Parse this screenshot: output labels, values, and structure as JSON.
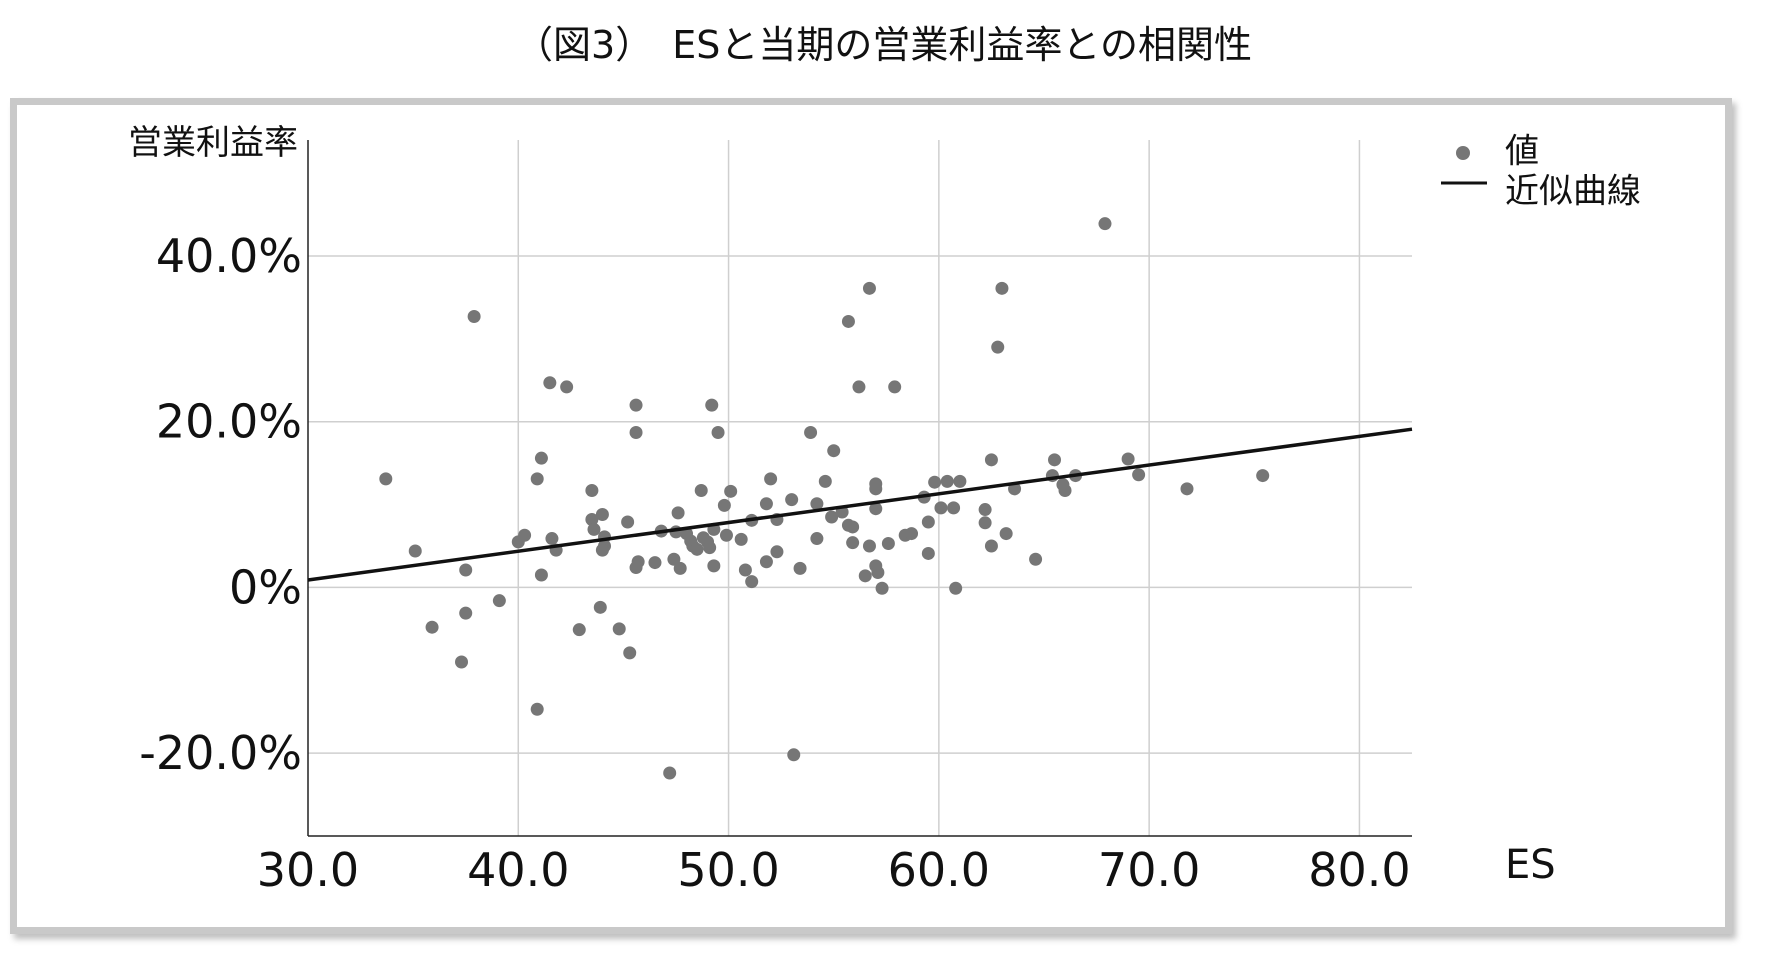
{
  "title": "（図3）　ESと当期の営業利益率との相関性",
  "chart_data": {
    "type": "scatter",
    "xlabel": "ES",
    "ylabel": "営業利益率",
    "xlim": [
      30,
      82.5
    ],
    "ylim": [
      -30,
      54
    ],
    "x_ticks": [
      30,
      40,
      50,
      60,
      70,
      80
    ],
    "x_tick_labels": [
      "30.0",
      "40.0",
      "50.0",
      "60.0",
      "70.0",
      "80.0"
    ],
    "y_ticks": [
      -20,
      0,
      20,
      40
    ],
    "y_tick_labels": [
      "-20.0%",
      "0%",
      "20.0%",
      "40.0%"
    ],
    "grid": true,
    "legend_position": "top-right",
    "series": [
      {
        "name": "値",
        "kind": "points",
        "color": "#767676",
        "points": [
          [
            33.7,
            13.1
          ],
          [
            35.1,
            4.4
          ],
          [
            35.9,
            -4.8
          ],
          [
            37.3,
            -9.0
          ],
          [
            37.5,
            2.1
          ],
          [
            37.5,
            -3.1
          ],
          [
            37.9,
            32.7
          ],
          [
            39.1,
            -1.6
          ],
          [
            40.0,
            5.5
          ],
          [
            40.3,
            6.3
          ],
          [
            40.9,
            13.1
          ],
          [
            40.9,
            -14.7
          ],
          [
            41.1,
            1.5
          ],
          [
            41.1,
            15.6
          ],
          [
            41.5,
            24.7
          ],
          [
            41.6,
            5.9
          ],
          [
            41.8,
            4.5
          ],
          [
            42.3,
            24.2
          ],
          [
            42.9,
            -5.1
          ],
          [
            43.5,
            11.7
          ],
          [
            43.5,
            8.2
          ],
          [
            43.6,
            7.0
          ],
          [
            44.0,
            8.8
          ],
          [
            44.1,
            6.1
          ],
          [
            44.1,
            5.0
          ],
          [
            44.0,
            4.5
          ],
          [
            43.9,
            -2.4
          ],
          [
            44.8,
            -5.0
          ],
          [
            45.2,
            7.9
          ],
          [
            45.3,
            -7.9
          ],
          [
            45.6,
            22.0
          ],
          [
            45.6,
            18.7
          ],
          [
            45.7,
            3.1
          ],
          [
            45.6,
            2.4
          ],
          [
            46.5,
            3.0
          ],
          [
            46.8,
            6.8
          ],
          [
            47.2,
            -22.4
          ],
          [
            47.4,
            3.4
          ],
          [
            47.5,
            6.7
          ],
          [
            47.6,
            9.0
          ],
          [
            47.7,
            2.3
          ],
          [
            48.0,
            6.5
          ],
          [
            48.2,
            5.6
          ],
          [
            48.3,
            5.0
          ],
          [
            48.5,
            4.6
          ],
          [
            48.7,
            11.7
          ],
          [
            48.8,
            6.0
          ],
          [
            49.0,
            5.5
          ],
          [
            49.1,
            4.8
          ],
          [
            49.2,
            22.0
          ],
          [
            49.3,
            2.6
          ],
          [
            49.3,
            7.0
          ],
          [
            49.5,
            18.7
          ],
          [
            49.8,
            9.9
          ],
          [
            49.9,
            6.3
          ],
          [
            50.1,
            11.6
          ],
          [
            50.6,
            5.8
          ],
          [
            50.8,
            2.1
          ],
          [
            51.1,
            8.1
          ],
          [
            51.1,
            0.7
          ],
          [
            51.8,
            10.1
          ],
          [
            51.8,
            3.1
          ],
          [
            52.0,
            13.1
          ],
          [
            52.3,
            4.3
          ],
          [
            52.3,
            8.2
          ],
          [
            53.0,
            10.6
          ],
          [
            53.1,
            -20.2
          ],
          [
            53.4,
            2.3
          ],
          [
            53.9,
            18.7
          ],
          [
            54.2,
            10.1
          ],
          [
            54.2,
            5.9
          ],
          [
            54.6,
            12.8
          ],
          [
            54.9,
            8.5
          ],
          [
            55.0,
            16.5
          ],
          [
            55.4,
            9.1
          ],
          [
            55.7,
            32.1
          ],
          [
            55.7,
            7.5
          ],
          [
            55.9,
            7.3
          ],
          [
            55.9,
            5.4
          ],
          [
            56.2,
            24.2
          ],
          [
            56.5,
            1.4
          ],
          [
            56.7,
            36.1
          ],
          [
            56.7,
            5.0
          ],
          [
            57.0,
            12.5
          ],
          [
            57.0,
            11.9
          ],
          [
            57.0,
            9.5
          ],
          [
            57.0,
            2.6
          ],
          [
            57.1,
            1.8
          ],
          [
            57.3,
            -0.1
          ],
          [
            57.6,
            5.3
          ],
          [
            57.9,
            24.2
          ],
          [
            58.4,
            6.3
          ],
          [
            58.7,
            6.5
          ],
          [
            59.3,
            10.9
          ],
          [
            59.5,
            7.9
          ],
          [
            59.5,
            4.1
          ],
          [
            59.8,
            12.7
          ],
          [
            60.1,
            9.6
          ],
          [
            60.4,
            12.8
          ],
          [
            60.7,
            9.6
          ],
          [
            60.8,
            -0.1
          ],
          [
            61.0,
            12.8
          ],
          [
            62.2,
            9.4
          ],
          [
            62.2,
            7.8
          ],
          [
            62.5,
            15.4
          ],
          [
            62.5,
            5.0
          ],
          [
            62.8,
            29.0
          ],
          [
            63.0,
            36.1
          ],
          [
            63.2,
            6.5
          ],
          [
            63.6,
            11.9
          ],
          [
            64.6,
            3.4
          ],
          [
            65.4,
            13.5
          ],
          [
            65.5,
            15.4
          ],
          [
            65.9,
            12.4
          ],
          [
            66.0,
            11.7
          ],
          [
            66.5,
            13.5
          ],
          [
            67.9,
            43.9
          ],
          [
            69.0,
            15.5
          ],
          [
            69.5,
            13.6
          ],
          [
            71.8,
            11.9
          ],
          [
            75.4,
            13.5
          ]
        ]
      },
      {
        "name": "近似曲線",
        "kind": "line",
        "color": "#111111",
        "points": [
          [
            30.0,
            0.9
          ],
          [
            82.5,
            19.1
          ]
        ]
      }
    ]
  }
}
